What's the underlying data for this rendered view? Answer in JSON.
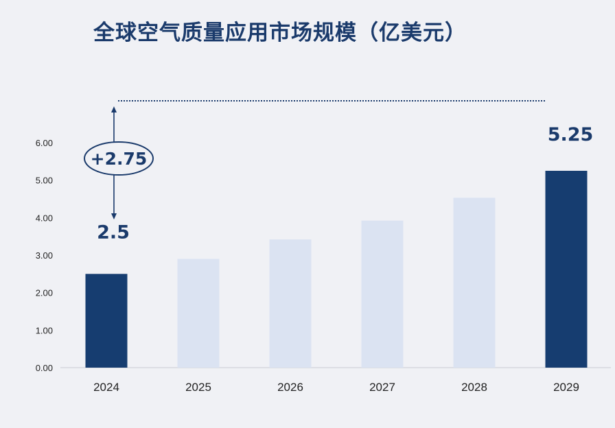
{
  "chart_data": {
    "type": "bar",
    "title": "全球空气质量应用市场规模（亿美元）",
    "categories": [
      "2024",
      "2025",
      "2026",
      "2027",
      "2028",
      "2029"
    ],
    "values": [
      2.5,
      2.9,
      3.42,
      3.92,
      4.53,
      5.25
    ],
    "highlighted_categories": [
      "2024",
      "2029"
    ],
    "data_labels": {
      "2024": "2.5",
      "2029": "5.25"
    },
    "ylim": [
      0,
      6
    ],
    "yticks": [
      "0.00",
      "1.00",
      "2.00",
      "3.00",
      "4.00",
      "5.00",
      "6.00"
    ],
    "xlabel": "",
    "ylabel": "",
    "grid": false,
    "annotation": {
      "text": "+2.75",
      "from_category": "2024",
      "to_category": "2029"
    },
    "colors": {
      "highlight_bar": "#163d70",
      "regular_bar": "#dbe3f2",
      "title": "#1a3a6b",
      "annotation": "#1a3a6b",
      "background": "#f0f1f5"
    }
  }
}
